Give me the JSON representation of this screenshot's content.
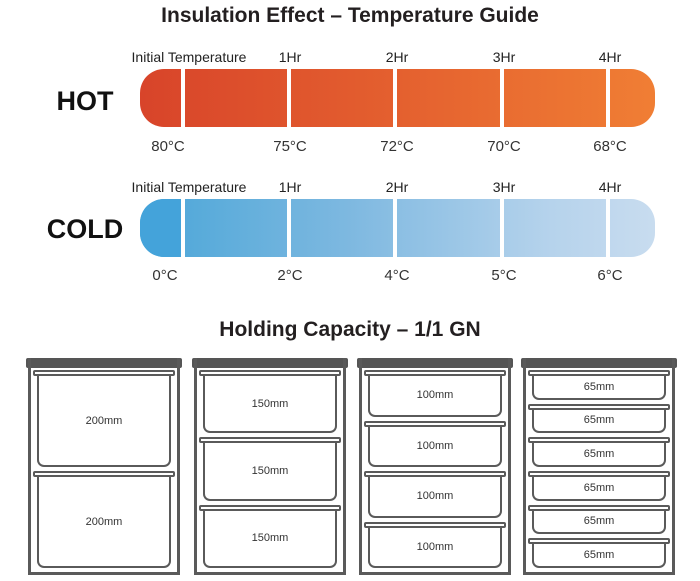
{
  "title": "Insulation Effect – Temperature Guide",
  "time_labels": [
    "Initial Temperature",
    "1Hr",
    "2Hr",
    "3Hr",
    "4Hr"
  ],
  "hot": {
    "label": "HOT",
    "temps": [
      "80°C",
      "75°C",
      "72°C",
      "70°C",
      "68°C"
    ]
  },
  "cold": {
    "label": "COLD",
    "temps": [
      "0°C",
      "2°C",
      "4°C",
      "5°C",
      "6°C"
    ]
  },
  "colors": {
    "hot_start": "#d8442a",
    "hot_end": "#f07e34",
    "cold_start": "#44a3da",
    "cold_end": "#c8dcef"
  },
  "capacity_title": "Holding Capacity – 1/1 GN",
  "cabinets": [
    {
      "pans": [
        "200mm",
        "200mm"
      ]
    },
    {
      "pans": [
        "150mm",
        "150mm",
        "150mm"
      ]
    },
    {
      "pans": [
        "100mm",
        "100mm",
        "100mm",
        "100mm"
      ]
    },
    {
      "pans": [
        "65mm",
        "65mm",
        "65mm",
        "65mm",
        "65mm",
        "65mm"
      ]
    }
  ]
}
